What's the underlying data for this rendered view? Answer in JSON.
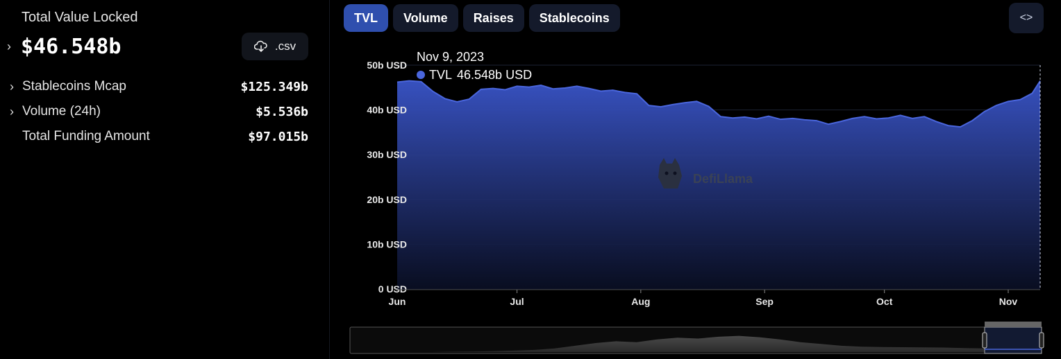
{
  "summary": {
    "tvl_label": "Total Value Locked",
    "tvl_value": "$46.548b",
    "csv_label": ".csv",
    "metrics": [
      {
        "label": "Stablecoins Mcap",
        "value": "$125.349b",
        "expandable": true
      },
      {
        "label": "Volume (24h)",
        "value": "$5.536b",
        "expandable": true
      },
      {
        "label": "Total Funding Amount",
        "value": "$97.015b",
        "expandable": false
      }
    ]
  },
  "tabs": [
    "TVL",
    "Volume",
    "Raises",
    "Stablecoins"
  ],
  "active_tab": "TVL",
  "icons": {
    "download": "cloud-download-icon",
    "embed": "code-brackets-icon",
    "chevron": "chevron-right-icon"
  },
  "colors": {
    "accent": "#4a66dd",
    "active_tab": "#2f4fae",
    "tab_bg": "#141a2b",
    "area_top": "#3a55c9",
    "area_bottom": "#0a0f24"
  },
  "watermark": "DefiLlama",
  "tooltip": {
    "date": "Nov 9, 2023",
    "series": "TVL",
    "value": "46.548b USD"
  },
  "chart_data": {
    "type": "area",
    "ylabel": "",
    "xlabel": "",
    "ylim": [
      0,
      50
    ],
    "yticks": [
      {
        "value": 0,
        "label": "0 USD"
      },
      {
        "value": 10,
        "label": "10b USD"
      },
      {
        "value": 20,
        "label": "20b USD"
      },
      {
        "value": 30,
        "label": "30b USD"
      },
      {
        "value": 40,
        "label": "40b USD"
      },
      {
        "value": 50,
        "label": "50b USD"
      }
    ],
    "x_range": [
      "2023-06-01",
      "2023-11-09"
    ],
    "xticks": [
      {
        "date": "2023-06-01",
        "label": "Jun"
      },
      {
        "date": "2023-07-01",
        "label": "Jul"
      },
      {
        "date": "2023-08-01",
        "label": "Aug"
      },
      {
        "date": "2023-09-01",
        "label": "Sep"
      },
      {
        "date": "2023-10-01",
        "label": "Oct"
      },
      {
        "date": "2023-11-01",
        "label": "Nov"
      }
    ],
    "grid": true,
    "series": [
      {
        "name": "TVL",
        "unit": "b USD",
        "x": [
          "2023-06-01",
          "2023-06-04",
          "2023-06-07",
          "2023-06-10",
          "2023-06-13",
          "2023-06-16",
          "2023-06-19",
          "2023-06-22",
          "2023-06-25",
          "2023-06-28",
          "2023-07-01",
          "2023-07-04",
          "2023-07-07",
          "2023-07-10",
          "2023-07-13",
          "2023-07-16",
          "2023-07-19",
          "2023-07-22",
          "2023-07-25",
          "2023-07-28",
          "2023-07-31",
          "2023-08-03",
          "2023-08-06",
          "2023-08-09",
          "2023-08-12",
          "2023-08-15",
          "2023-08-18",
          "2023-08-21",
          "2023-08-24",
          "2023-08-27",
          "2023-08-30",
          "2023-09-02",
          "2023-09-05",
          "2023-09-08",
          "2023-09-11",
          "2023-09-14",
          "2023-09-17",
          "2023-09-20",
          "2023-09-23",
          "2023-09-26",
          "2023-09-29",
          "2023-10-02",
          "2023-10-05",
          "2023-10-08",
          "2023-10-11",
          "2023-10-14",
          "2023-10-17",
          "2023-10-20",
          "2023-10-23",
          "2023-10-26",
          "2023-10-29",
          "2023-11-01",
          "2023-11-04",
          "2023-11-07",
          "2023-11-09"
        ],
        "values": [
          46.2,
          46.5,
          46.3,
          44.1,
          42.5,
          41.8,
          42.4,
          44.6,
          44.8,
          44.5,
          45.3,
          45.1,
          45.5,
          44.7,
          44.9,
          45.3,
          44.8,
          44.2,
          44.4,
          43.9,
          43.6,
          41.0,
          40.7,
          41.2,
          41.6,
          41.9,
          40.8,
          38.5,
          38.2,
          38.4,
          38.0,
          38.6,
          37.9,
          38.1,
          37.8,
          37.6,
          36.8,
          37.4,
          38.1,
          38.5,
          38.0,
          38.2,
          38.8,
          38.1,
          38.5,
          37.4,
          36.5,
          36.2,
          37.6,
          39.6,
          41.0,
          41.9,
          42.3,
          43.7,
          46.5
        ]
      }
    ]
  }
}
